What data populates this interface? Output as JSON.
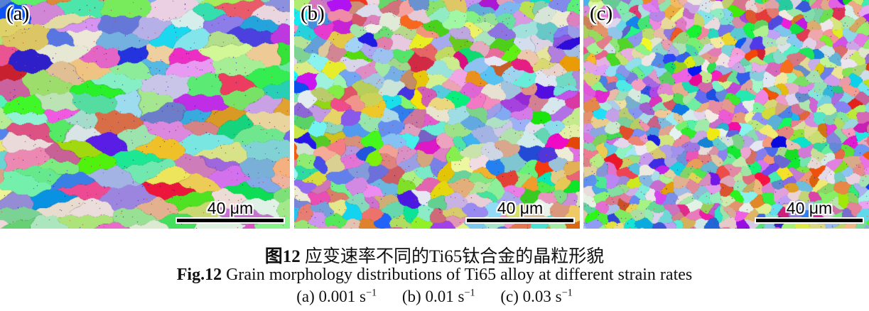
{
  "figure": {
    "panels": [
      {
        "label": "(a)",
        "scale_label": "40 μm",
        "grain_w": 50,
        "grain_h": 22,
        "seed": 1013
      },
      {
        "label": "(b)",
        "scale_label": "40 μm",
        "grain_w": 24,
        "grain_h": 17,
        "seed": 2027
      },
      {
        "label": "(c)",
        "scale_label": "40 μm",
        "grain_w": 16,
        "grain_h": 13,
        "seed": 3041
      }
    ],
    "caption_cn": {
      "bold": "图12",
      "rest": " 应变速率不同的Ti65钛合金的晶粒形貌"
    },
    "caption_en": {
      "bold": "Fig.12",
      "rest": " Grain morphology distributions of Ti65 alloy at different strain rates"
    },
    "subcaptions": [
      {
        "text": "(a) 0.001 s",
        "sup": "−1"
      },
      {
        "text": "(b) 0.01 s",
        "sup": "−1"
      },
      {
        "text": "(c) 0.03 s",
        "sup": "−1"
      }
    ],
    "scalebar_color": "#000000",
    "background_color": "#ffffff"
  }
}
